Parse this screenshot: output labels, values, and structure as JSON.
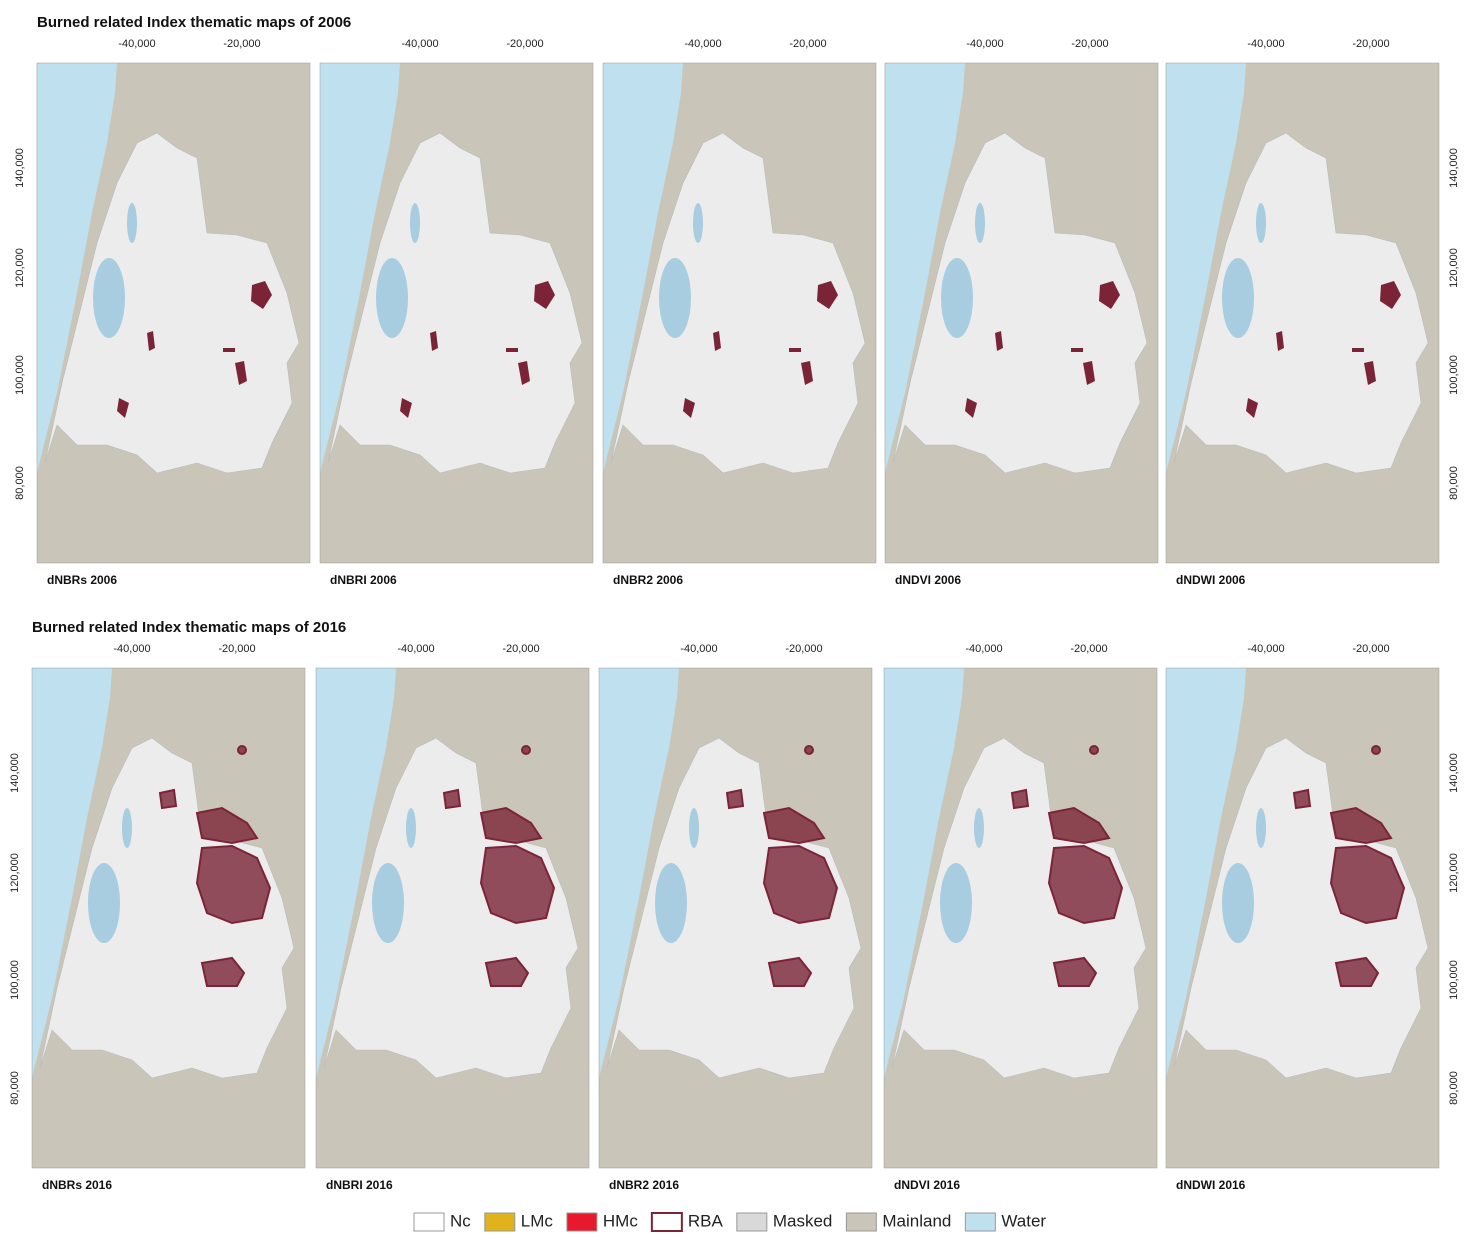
{
  "rows": [
    {
      "title": "Burned related Index thematic maps of 2006",
      "panels": [
        "dNBRs 2006",
        "dNBRI 2006",
        "dNBR2 2006",
        "dNDVI 2006",
        "dNDWI 2006"
      ]
    },
    {
      "title": "Burned related Index thematic maps of 2016",
      "panels": [
        "dNBRs 2016",
        "dNBRI 2016",
        "dNBR2 2016",
        "dNDVI 2016",
        "dNDWI 2016"
      ]
    }
  ],
  "x_tick_labels": [
    "-40,000",
    "-20,000"
  ],
  "y_tick_labels": [
    "140,000",
    "120,000",
    "100,000",
    "80,000"
  ],
  "legend": [
    {
      "label": "Nc",
      "color": "#ffffff"
    },
    {
      "label": "LMc",
      "color": "#e0b21b"
    },
    {
      "label": "HMc",
      "color": "#e8182d"
    },
    {
      "label": "RBA",
      "color": "#ffffff",
      "border": "#7b2437"
    },
    {
      "label": "Masked",
      "color": "#d9d9d9"
    },
    {
      "label": "Mainland",
      "color": "#c9c5b8"
    },
    {
      "label": "Water",
      "color": "#bfe0ef"
    }
  ]
}
